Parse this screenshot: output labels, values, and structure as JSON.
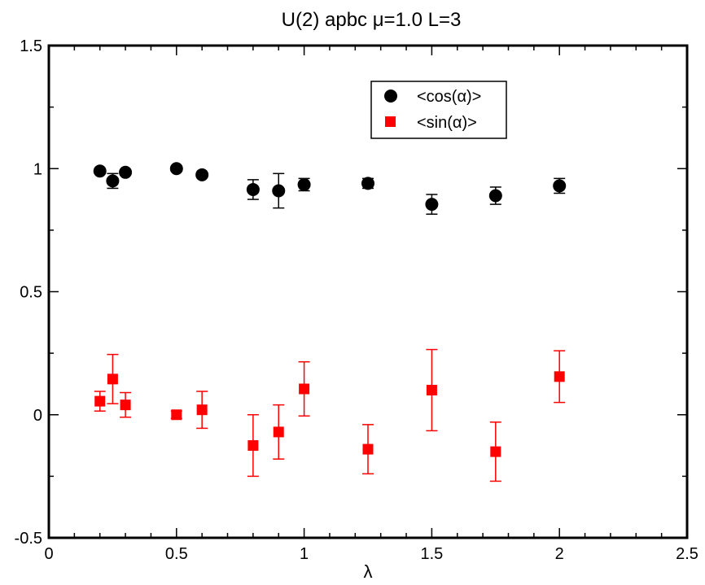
{
  "chart_data": {
    "type": "scatter",
    "title": "U(2) apbc μ=1.0 L=3",
    "xlabel": "λ",
    "ylabel": "",
    "xlim": [
      0,
      2.5
    ],
    "ylim": [
      -0.5,
      1.5
    ],
    "x_ticks": [
      "0",
      "0.5",
      "1",
      "1.5",
      "2",
      "2.5"
    ],
    "y_ticks": [
      "-0.5",
      "0",
      "0.5",
      "1",
      "1.5"
    ],
    "grid": false,
    "legend_position": "top-right",
    "series": [
      {
        "name": "<cos(α)>",
        "marker": "circle",
        "color": "#000000",
        "x": [
          0.2,
          0.25,
          0.3,
          0.5,
          0.6,
          0.8,
          0.9,
          1.0,
          1.25,
          1.5,
          1.75,
          2.0
        ],
        "y": [
          0.99,
          0.95,
          0.985,
          1.0,
          0.975,
          0.915,
          0.91,
          0.935,
          0.94,
          0.855,
          0.89,
          0.93
        ],
        "err": [
          0.01,
          0.03,
          0.01,
          0.01,
          0.01,
          0.04,
          0.07,
          0.025,
          0.02,
          0.04,
          0.035,
          0.03
        ]
      },
      {
        "name": "<sin(α)>",
        "marker": "square",
        "color": "#ff0000",
        "x": [
          0.2,
          0.25,
          0.3,
          0.5,
          0.6,
          0.8,
          0.9,
          1.0,
          1.25,
          1.5,
          1.75,
          2.0
        ],
        "y": [
          0.055,
          0.145,
          0.04,
          0.0,
          0.02,
          -0.125,
          -0.07,
          0.105,
          -0.14,
          0.1,
          -0.15,
          0.155
        ],
        "err": [
          0.04,
          0.1,
          0.05,
          0.015,
          0.075,
          0.125,
          0.11,
          0.11,
          0.1,
          0.165,
          0.12,
          0.105
        ]
      }
    ]
  }
}
